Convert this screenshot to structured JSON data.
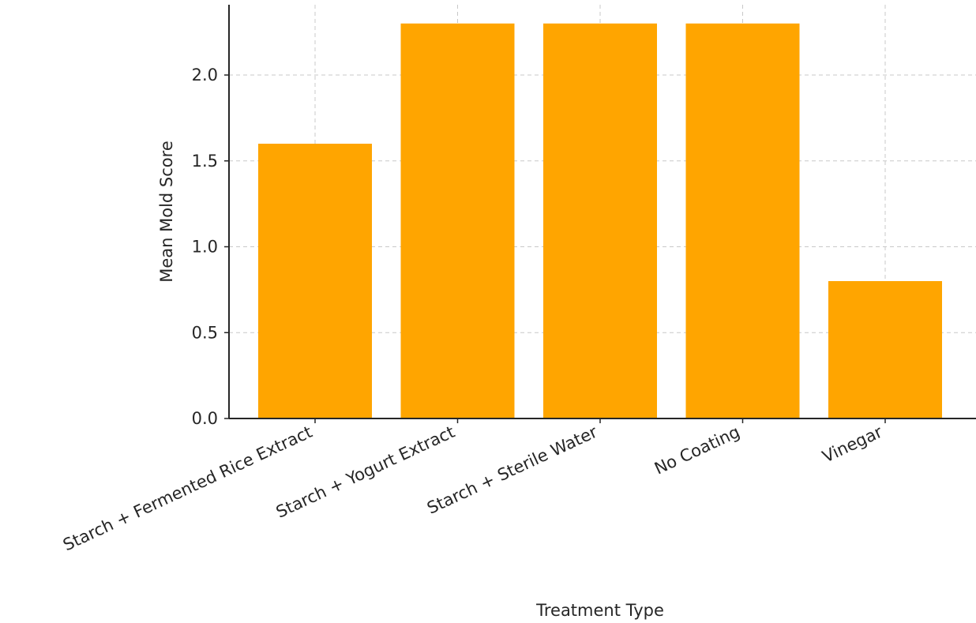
{
  "chart_data": {
    "type": "bar",
    "categories": [
      "Starch + Fermented Rice Extract",
      "Starch + Yogurt Extract",
      "Starch + Sterile Water",
      "No Coating",
      "Vinegar"
    ],
    "values": [
      1.6,
      2.3,
      2.3,
      2.3,
      0.8
    ],
    "xlabel": "Treatment Type",
    "ylabel": "Mean Mold Score",
    "ylim": [
      0,
      2.3
    ],
    "yticks": [
      "0.0",
      "0.5",
      "1.0",
      "1.5",
      "2.0"
    ],
    "grid": true,
    "bar_color": "#FFA500"
  }
}
